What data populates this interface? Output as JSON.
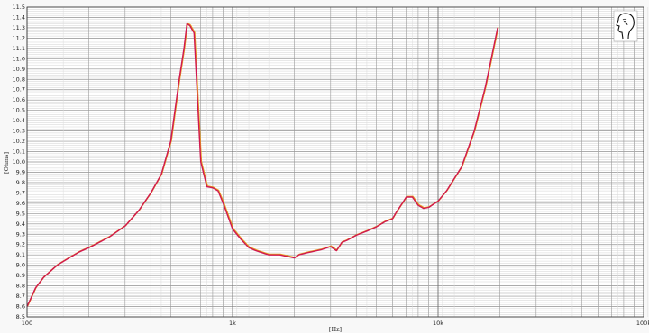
{
  "chart_data": {
    "type": "line",
    "title": "",
    "xlabel": "[Hz]",
    "ylabel": "[Ohms]",
    "x_scale": "log",
    "xlim": [
      100,
      100000
    ],
    "ylim": [
      8.5,
      11.5
    ],
    "grid": true,
    "x_tick_labels": [
      "100",
      "1k",
      "10k",
      "100k"
    ],
    "x_tick_values": [
      100,
      1000,
      10000,
      100000
    ],
    "y_tick_labels": [
      "8.5",
      "8.6",
      "8.7",
      "8.8",
      "8.9",
      "9.0",
      "9.1",
      "9.2",
      "9.3",
      "9.4",
      "9.5",
      "9.6",
      "9.7",
      "9.8",
      "9.9",
      "10.0",
      "10.1",
      "10.2",
      "10.3",
      "10.4",
      "10.5",
      "10.6",
      "10.7",
      "10.8",
      "10.9",
      "11.0",
      "11.1",
      "11.2",
      "11.3",
      "11.4",
      "11.5"
    ],
    "series": [
      {
        "color": "#d01850",
        "shadow_color": "#e8a020",
        "x": [
          100,
          110,
          120,
          140,
          160,
          180,
          200,
          250,
          300,
          350,
          400,
          450,
          500,
          550,
          580,
          600,
          620,
          650,
          700,
          750,
          800,
          850,
          900,
          1000,
          1100,
          1200,
          1300,
          1500,
          1700,
          2000,
          2100,
          2300,
          2700,
          3000,
          3200,
          3400,
          3600,
          4000,
          4500,
          5000,
          5500,
          6000,
          6300,
          6700,
          7000,
          7500,
          8000,
          8500,
          9000,
          10000,
          11000,
          13000,
          15000,
          17000,
          19500
        ],
        "y": [
          8.6,
          8.78,
          8.88,
          9.0,
          9.07,
          9.13,
          9.17,
          9.27,
          9.38,
          9.53,
          9.7,
          9.88,
          10.2,
          10.8,
          11.1,
          11.34,
          11.32,
          11.25,
          10.0,
          9.76,
          9.75,
          9.72,
          9.6,
          9.35,
          9.25,
          9.17,
          9.14,
          9.1,
          9.1,
          9.07,
          9.1,
          9.12,
          9.15,
          9.18,
          9.14,
          9.22,
          9.24,
          9.29,
          9.33,
          9.37,
          9.42,
          9.45,
          9.52,
          9.6,
          9.66,
          9.66,
          9.58,
          9.55,
          9.56,
          9.62,
          9.72,
          9.95,
          10.3,
          10.73,
          11.3
        ]
      }
    ]
  },
  "logo": {
    "icon": "head-silhouette-icon"
  }
}
